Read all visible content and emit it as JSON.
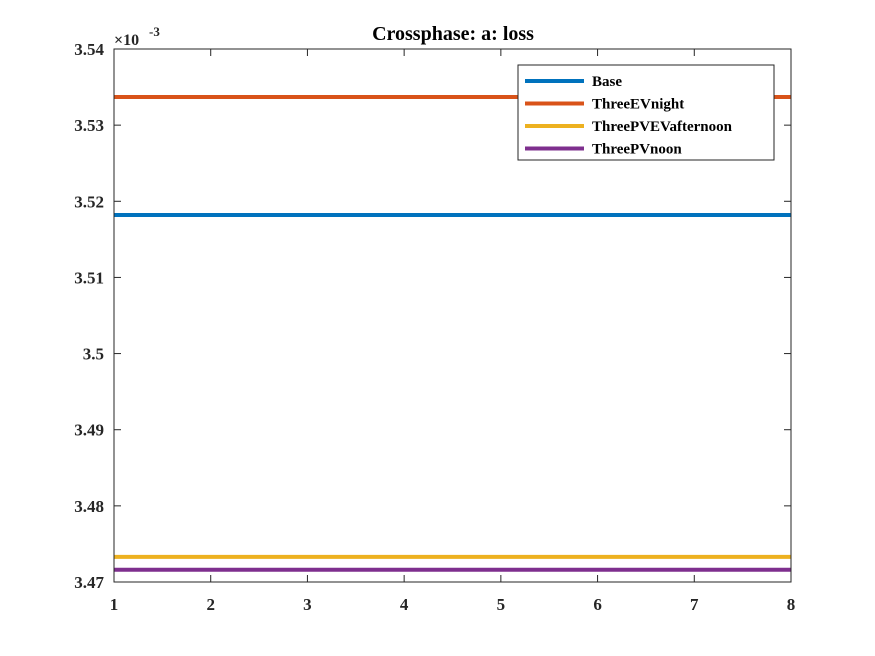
{
  "chart_data": {
    "type": "line",
    "title": "Crossphase: a: loss",
    "xlabel": "",
    "ylabel": "",
    "x": [
      1,
      2,
      3,
      4,
      5,
      6,
      7,
      8
    ],
    "xlim": [
      1,
      8
    ],
    "ylim": [
      3.47,
      3.54
    ],
    "y_exponent_label": "×10",
    "y_exponent_power": "-3",
    "xticks": [
      "1",
      "2",
      "3",
      "4",
      "5",
      "6",
      "7",
      "8"
    ],
    "yticks": [
      "3.47",
      "3.48",
      "3.49",
      "3.5",
      "3.51",
      "3.52",
      "3.53",
      "3.54"
    ],
    "ytick_values": [
      3.47,
      3.48,
      3.49,
      3.5,
      3.51,
      3.52,
      3.53,
      3.54
    ],
    "grid": false,
    "legend_position": "top-right",
    "series": [
      {
        "name": "Base",
        "color": "#0072BD",
        "values": [
          3.5182,
          3.5182,
          3.5182,
          3.5182,
          3.5182,
          3.5182,
          3.5182,
          3.5182
        ]
      },
      {
        "name": "ThreeEVnight",
        "color": "#D95319",
        "values": [
          3.5337,
          3.5337,
          3.5337,
          3.5337,
          3.5337,
          3.5337,
          3.5337,
          3.5337
        ]
      },
      {
        "name": "ThreePVEVafternoon",
        "color": "#EDB120",
        "values": [
          3.4733,
          3.4733,
          3.4733,
          3.4733,
          3.4733,
          3.4733,
          3.4733,
          3.4733
        ]
      },
      {
        "name": "ThreePVnoon",
        "color": "#7E2F8E",
        "values": [
          3.4716,
          3.4716,
          3.4716,
          3.4716,
          3.4716,
          3.4716,
          3.4716,
          3.4716
        ]
      }
    ]
  }
}
